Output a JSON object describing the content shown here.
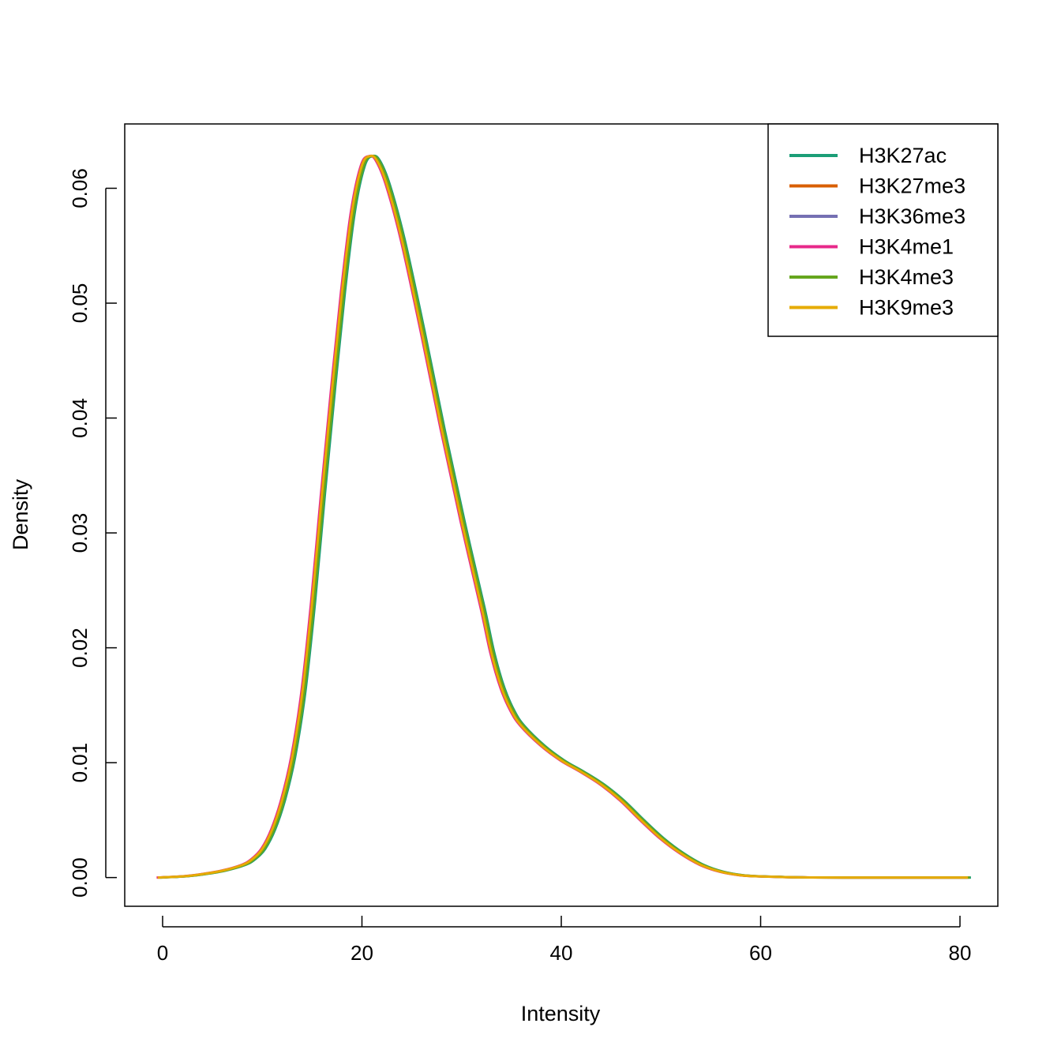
{
  "chart_data": {
    "type": "line",
    "title": "",
    "xlabel": "Intensity",
    "ylabel": "Density",
    "xlim": [
      -3.8,
      83.8
    ],
    "ylim": [
      -0.0025,
      0.0656
    ],
    "xticks": [
      0,
      20,
      40,
      60,
      80
    ],
    "yticks": [
      0.0,
      0.01,
      0.02,
      0.03,
      0.04,
      0.05,
      0.06
    ],
    "ytick_labels": [
      "0.00",
      "0.01",
      "0.02",
      "0.03",
      "0.04",
      "0.05",
      "0.06"
    ],
    "grid": false,
    "legend": "top-right",
    "base_curve": {
      "x": [
        -0.5,
        2,
        4,
        6,
        8,
        9,
        10,
        11,
        12,
        13,
        14,
        15,
        16,
        17,
        18,
        19,
        20,
        20.8,
        21.5,
        22.5,
        24,
        26,
        28,
        30,
        32,
        33,
        34,
        35,
        36,
        38,
        40,
        42,
        44,
        46,
        48,
        50,
        52,
        54,
        56,
        58,
        60,
        62,
        65,
        70,
        75,
        80.8
      ],
      "y": [
        0.0,
        0.0001,
        0.0003,
        0.0006,
        0.0011,
        0.0016,
        0.0025,
        0.0042,
        0.0068,
        0.0105,
        0.016,
        0.024,
        0.0335,
        0.0425,
        0.051,
        0.058,
        0.062,
        0.0628,
        0.0624,
        0.0603,
        0.0555,
        0.0475,
        0.039,
        0.031,
        0.0235,
        0.0195,
        0.0165,
        0.0145,
        0.0132,
        0.0115,
        0.0102,
        0.0092,
        0.0081,
        0.0067,
        0.005,
        0.0034,
        0.0021,
        0.0011,
        0.0005,
        0.0002,
        0.0001,
        5e-05,
        1e-05,
        0.0,
        0.0,
        0.0
      ]
    },
    "series": [
      {
        "name": "H3K27ac",
        "color": "#1B9E77",
        "x_shift": 0.3
      },
      {
        "name": "H3K27me3",
        "color": "#D95F02",
        "x_shift": 0.0
      },
      {
        "name": "H3K36me3",
        "color": "#7570B3",
        "x_shift": 0.15
      },
      {
        "name": "H3K4me1",
        "color": "#E7298A",
        "x_shift": -0.1
      },
      {
        "name": "H3K4me3",
        "color": "#66A61E",
        "x_shift": 0.2
      },
      {
        "name": "H3K9me3",
        "color": "#E6AB02",
        "x_shift": 0.0
      }
    ]
  }
}
